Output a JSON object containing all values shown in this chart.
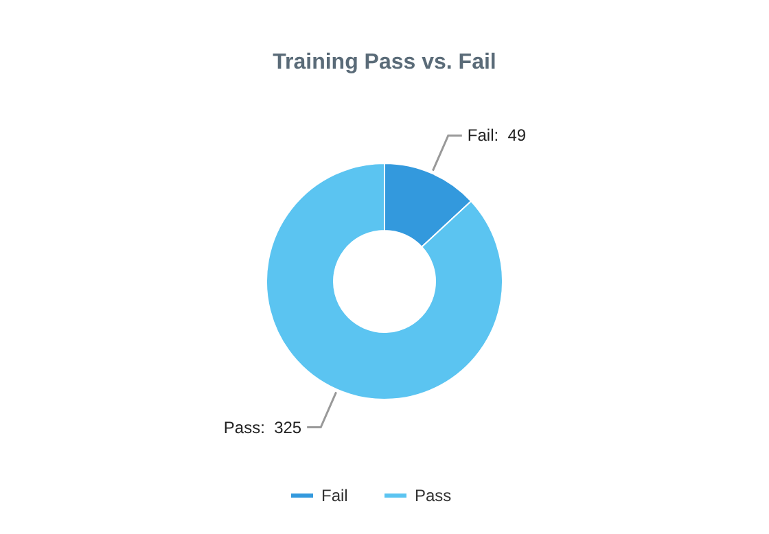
{
  "chart_data": {
    "type": "donut",
    "title": "Training Pass vs. Fail",
    "categories": [
      "Fail",
      "Pass"
    ],
    "values": [
      49,
      325
    ],
    "colors": [
      "#3399dd",
      "#5bc4f1"
    ],
    "value_labels": [
      "Fail:  49",
      "Pass:  325"
    ],
    "legend": "bottom"
  }
}
